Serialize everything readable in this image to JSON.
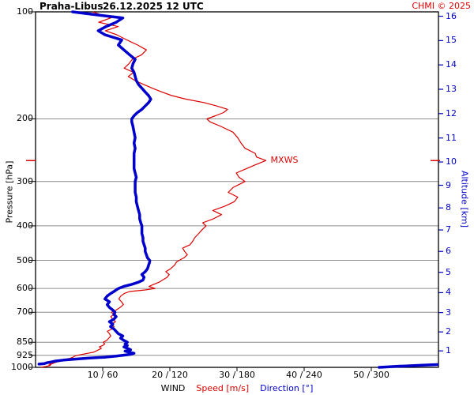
{
  "header": {
    "station": "Praha-Libus",
    "datetime": "26.12.2025 12 UTC",
    "copyright": "CHMI © 2025"
  },
  "colors": {
    "speed": "#dd0000",
    "direction": "#0000cc",
    "grid": "#8c8c8c",
    "axis": "#000000",
    "altitude_axis": "#0000cc",
    "copyright": "#dd0000"
  },
  "chart_data": {
    "type": "line",
    "title": "Praha-Libus 26.12.2025 12 UTC",
    "xlabel": "WIND",
    "xlabel_speed": "Speed [m/s]",
    "xlabel_direction": "Direction [°]",
    "ylabel_left": "Pressure [hPa]",
    "ylabel_right": "Altitude [km]",
    "legend": "none",
    "grid": "horizontal pressure levels only",
    "axes": {
      "pressure_range": [
        100,
        1000
      ],
      "pressure_scale": "log",
      "pressure_ticks": [
        100,
        200,
        300,
        400,
        500,
        600,
        700,
        850,
        925,
        1000
      ],
      "altitude_ticks": [
        1,
        2,
        3,
        4,
        5,
        6,
        7,
        8,
        9,
        10,
        11,
        12,
        13,
        14,
        15,
        16
      ],
      "speed_max": 60,
      "direction_max": 360,
      "x_ticks": [
        {
          "speed": 10,
          "direction": 60,
          "label": "10 / 60"
        },
        {
          "speed": 20,
          "direction": 120,
          "label": "20 / 120"
        },
        {
          "speed": 30,
          "direction": 180,
          "label": "30 / 180"
        },
        {
          "speed": 40,
          "direction": 240,
          "label": "40 / 240"
        },
        {
          "speed": 50,
          "direction": 300,
          "label": "50 / 300"
        }
      ]
    },
    "series": [
      {
        "name": "Wind speed",
        "units": "m/s",
        "color": "#dd0000",
        "style": "thin"
      },
      {
        "name": "Wind direction",
        "units": "deg",
        "color": "#0000cc",
        "style": "thick"
      }
    ],
    "profile_columns": [
      "pressure_hPa",
      "speed_ms",
      "direction_deg"
    ],
    "profile": [
      [
        1000,
        0.8,
        307
      ],
      [
        997,
        1.2,
        315
      ],
      [
        994,
        1.6,
        322
      ],
      [
        991,
        1.9,
        331
      ],
      [
        988,
        2.2,
        340
      ],
      [
        985,
        2.0,
        350
      ],
      [
        982,
        2.3,
        359
      ],
      [
        979,
        2.1,
        3
      ],
      [
        976,
        2.5,
        8
      ],
      [
        971,
        2.8,
        10
      ],
      [
        966,
        3.2,
        14
      ],
      [
        960,
        3.8,
        18
      ],
      [
        954,
        4.2,
        25
      ],
      [
        948,
        4.6,
        35
      ],
      [
        942,
        5.2,
        48
      ],
      [
        936,
        5.6,
        62
      ],
      [
        930,
        5.8,
        72
      ],
      [
        925,
        6.2,
        78
      ],
      [
        919,
        7.0,
        85
      ],
      [
        913,
        7.8,
        88
      ],
      [
        907,
        8.6,
        84
      ],
      [
        900,
        9.0,
        80
      ],
      [
        892,
        9.4,
        85
      ],
      [
        884,
        9.8,
        82
      ],
      [
        876,
        9.5,
        79
      ],
      [
        868,
        10.0,
        82
      ],
      [
        860,
        10.3,
        80
      ],
      [
        850,
        10.1,
        82
      ],
      [
        840,
        10.6,
        79
      ],
      [
        828,
        10.9,
        76
      ],
      [
        816,
        11.2,
        78
      ],
      [
        804,
        11.0,
        74
      ],
      [
        792,
        10.7,
        72
      ],
      [
        780,
        11.4,
        70
      ],
      [
        768,
        11.7,
        67
      ],
      [
        756,
        11.3,
        69
      ],
      [
        744,
        11.9,
        66
      ],
      [
        732,
        11.5,
        70
      ],
      [
        720,
        11.2,
        72
      ],
      [
        710,
        11.6,
        70
      ],
      [
        700,
        11.3,
        71
      ],
      [
        690,
        12.0,
        69
      ],
      [
        678,
        12.6,
        66
      ],
      [
        666,
        13.1,
        64
      ],
      [
        654,
        12.8,
        66
      ],
      [
        642,
        12.4,
        62
      ],
      [
        630,
        12.7,
        64
      ],
      [
        620,
        13.2,
        67
      ],
      [
        612,
        14.0,
        70
      ],
      [
        606,
        16.2,
        72
      ],
      [
        600,
        17.8,
        74
      ],
      [
        592,
        16.9,
        79
      ],
      [
        584,
        17.6,
        86
      ],
      [
        576,
        18.4,
        92
      ],
      [
        568,
        18.9,
        96
      ],
      [
        558,
        19.6,
        97
      ],
      [
        548,
        19.9,
        95
      ],
      [
        538,
        19.4,
        98
      ],
      [
        528,
        20.1,
        100
      ],
      [
        516,
        20.7,
        101
      ],
      [
        505,
        21.0,
        102
      ],
      [
        500,
        21.4,
        102
      ],
      [
        492,
        22.1,
        100
      ],
      [
        482,
        22.6,
        99
      ],
      [
        472,
        22.2,
        98
      ],
      [
        462,
        21.9,
        98
      ],
      [
        452,
        23.0,
        97
      ],
      [
        442,
        23.4,
        96
      ],
      [
        432,
        23.7,
        96
      ],
      [
        420,
        24.3,
        95
      ],
      [
        410,
        24.8,
        95
      ],
      [
        400,
        25.4,
        95
      ],
      [
        392,
        24.9,
        94
      ],
      [
        382,
        26.5,
        93
      ],
      [
        372,
        27.7,
        93
      ],
      [
        362,
        26.4,
        92
      ],
      [
        352,
        28.2,
        91
      ],
      [
        342,
        29.6,
        90
      ],
      [
        332,
        30.1,
        90
      ],
      [
        322,
        28.7,
        89
      ],
      [
        312,
        29.4,
        89
      ],
      [
        304,
        30.6,
        89
      ],
      [
        300,
        31.2,
        89
      ],
      [
        292,
        30.3,
        90
      ],
      [
        284,
        29.9,
        89
      ],
      [
        276,
        31.4,
        88
      ],
      [
        268,
        33.0,
        88
      ],
      [
        262,
        34.3,
        88
      ],
      [
        256,
        32.9,
        88
      ],
      [
        250,
        32.7,
        88
      ],
      [
        242,
        31.2,
        89
      ],
      [
        234,
        30.6,
        88
      ],
      [
        226,
        30.1,
        89
      ],
      [
        218,
        29.4,
        88
      ],
      [
        210,
        27.6,
        87
      ],
      [
        204,
        26.0,
        86
      ],
      [
        200,
        25.5,
        86
      ],
      [
        196,
        26.8,
        88
      ],
      [
        192,
        28.0,
        91
      ],
      [
        188,
        28.6,
        95
      ],
      [
        184,
        27.0,
        98
      ],
      [
        180,
        25.1,
        101
      ],
      [
        176,
        22.4,
        103
      ],
      [
        172,
        20.3,
        101
      ],
      [
        168,
        18.8,
        98
      ],
      [
        164,
        17.4,
        95
      ],
      [
        160,
        16.1,
        92
      ],
      [
        156,
        14.8,
        90
      ],
      [
        152,
        13.8,
        89
      ],
      [
        148,
        14.6,
        88
      ],
      [
        144,
        13.2,
        86
      ],
      [
        140,
        13.9,
        87
      ],
      [
        136,
        14.4,
        89
      ],
      [
        132,
        15.8,
        84
      ],
      [
        128,
        16.5,
        79
      ],
      [
        124,
        15.2,
        74
      ],
      [
        120,
        13.6,
        77
      ],
      [
        116,
        12.1,
        62
      ],
      [
        113,
        10.4,
        56
      ],
      [
        110,
        12.3,
        63
      ],
      [
        107,
        9.4,
        72
      ],
      [
        104,
        11.2,
        78
      ],
      [
        102,
        9.8,
        55
      ],
      [
        100,
        8.5,
        33
      ]
    ],
    "mxws": {
      "label": "MXWS",
      "pressure_hPa": 262,
      "speed_ms": 34.3
    }
  }
}
